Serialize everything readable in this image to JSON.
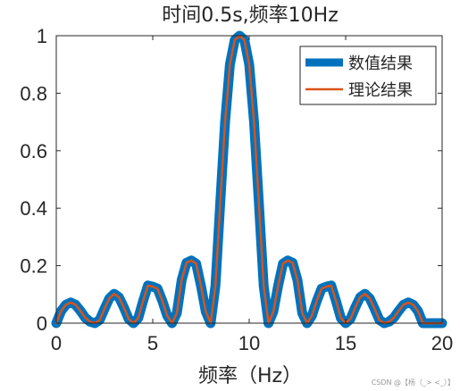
{
  "chart_data": {
    "type": "line",
    "title": "时间0.5s,频率10Hz",
    "xlabel": "频率（Hz）",
    "ylabel": "",
    "xlim": [
      0,
      20
    ],
    "ylim": [
      0,
      1
    ],
    "xticks": [
      0,
      5,
      10,
      15,
      20
    ],
    "xtick_labels": [
      "0",
      "5",
      "10",
      "15",
      "20"
    ],
    "yticks": [
      0,
      0.2,
      0.4,
      0.6,
      0.8,
      1
    ],
    "ytick_labels": [
      "0",
      "0.2",
      "0.4",
      "0.6",
      "0.8",
      "1"
    ],
    "grid": false,
    "legend_position": "top-right",
    "x": [
      0,
      0.25,
      0.5,
      0.75,
      1,
      1.25,
      1.5,
      1.75,
      2,
      2.25,
      2.5,
      2.75,
      3,
      3.25,
      3.5,
      3.75,
      4,
      4.25,
      4.5,
      4.75,
      5,
      5.25,
      5.5,
      5.75,
      6,
      6.25,
      6.5,
      6.75,
      7,
      7.25,
      7.5,
      7.75,
      8,
      8.25,
      8.5,
      8.75,
      9,
      9.25,
      9.5,
      9.75,
      10,
      10.25,
      10.5,
      10.75,
      11,
      11.25,
      11.5,
      11.75,
      12,
      12.25,
      12.5,
      12.75,
      13,
      13.25,
      13.5,
      13.75,
      14,
      14.25,
      14.5,
      14.75,
      15,
      15.25,
      15.5,
      15.75,
      16,
      16.25,
      16.5,
      16.75,
      17,
      17.25,
      17.5,
      17.75,
      18,
      18.25,
      18.5,
      18.75,
      19,
      19.25,
      19.5,
      19.75,
      20
    ],
    "series": [
      {
        "name": "数值结果",
        "color": "#0072BD",
        "style": "thick",
        "values": [
          0.0,
          0.042,
          0.064,
          0.072,
          0.064,
          0.043,
          0.019,
          0.005,
          0.0,
          0.011,
          0.05,
          0.086,
          0.102,
          0.09,
          0.055,
          0.015,
          0.0,
          0.018,
          0.077,
          0.131,
          0.127,
          0.12,
          0.077,
          0.026,
          0.0,
          0.035,
          0.15,
          0.21,
          0.218,
          0.207,
          0.13,
          0.04,
          0.0,
          0.13,
          0.42,
          0.7,
          0.9,
          0.985,
          1.0,
          0.985,
          0.9,
          0.7,
          0.42,
          0.13,
          0.0,
          0.04,
          0.13,
          0.207,
          0.218,
          0.21,
          0.15,
          0.035,
          0.0,
          0.026,
          0.077,
          0.12,
          0.127,
          0.131,
          0.077,
          0.018,
          0.0,
          0.015,
          0.055,
          0.09,
          0.102,
          0.086,
          0.05,
          0.011,
          0.0,
          0.005,
          0.019,
          0.043,
          0.064,
          0.072,
          0.064,
          0.042,
          0.0,
          0.0,
          0.0,
          0.0,
          0.0
        ]
      },
      {
        "name": "理论结果",
        "color": "#D95319",
        "style": "thin",
        "values": [
          0.0,
          0.042,
          0.064,
          0.072,
          0.064,
          0.043,
          0.019,
          0.005,
          0.0,
          0.011,
          0.05,
          0.086,
          0.102,
          0.09,
          0.055,
          0.015,
          0.0,
          0.018,
          0.077,
          0.131,
          0.127,
          0.12,
          0.077,
          0.026,
          0.0,
          0.035,
          0.15,
          0.21,
          0.218,
          0.207,
          0.13,
          0.04,
          0.0,
          0.13,
          0.42,
          0.7,
          0.9,
          0.985,
          1.0,
          0.985,
          0.9,
          0.7,
          0.42,
          0.13,
          0.0,
          0.04,
          0.13,
          0.207,
          0.218,
          0.21,
          0.15,
          0.035,
          0.0,
          0.026,
          0.077,
          0.12,
          0.127,
          0.131,
          0.077,
          0.018,
          0.0,
          0.015,
          0.055,
          0.09,
          0.102,
          0.086,
          0.05,
          0.011,
          0.0,
          0.005,
          0.019,
          0.043,
          0.064,
          0.072,
          0.064,
          0.042,
          0.0,
          0.0,
          0.0,
          0.0,
          0.0
        ]
      }
    ]
  },
  "watermark": "CSDN @【杨（_> <_）】"
}
